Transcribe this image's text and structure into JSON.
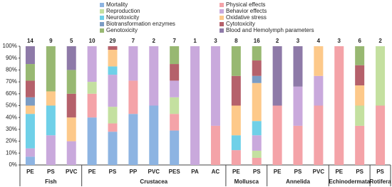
{
  "chart_data": {
    "type": "stacked_bar_100",
    "groups": [
      {
        "name": "Fish",
        "categories": [
          "PE",
          "PS",
          "PVC"
        ]
      },
      {
        "name": "Crustacea",
        "categories": [
          "PE",
          "PS",
          "PP",
          "PVC",
          "PES",
          "PA",
          "AC"
        ]
      },
      {
        "name": "Mollusca",
        "categories": [
          "PE",
          "PS"
        ]
      },
      {
        "name": "Annelida",
        "categories": [
          "PE",
          "PS",
          "PVC"
        ]
      },
      {
        "name": "Echinodermata",
        "categories": [
          "PE",
          "PS"
        ]
      },
      {
        "name": "Rotifera",
        "categories": [
          "PS"
        ]
      }
    ],
    "sample_sizes": [
      14,
      9,
      5,
      10,
      29,
      7,
      2,
      7,
      1,
      3,
      8,
      16,
      2,
      3,
      4,
      3,
      6,
      2
    ],
    "series": [
      {
        "name": "Mortality",
        "color": "#8db4e2",
        "values": [
          7,
          0,
          0,
          40,
          28,
          43,
          50,
          29,
          0,
          0,
          0,
          0,
          0,
          0,
          0,
          0,
          0,
          0
        ]
      },
      {
        "name": "Physical effects",
        "color": "#f4a3a8",
        "values": [
          0,
          0,
          0,
          20,
          7,
          28,
          0,
          14,
          0,
          33,
          12.5,
          6,
          50,
          33,
          50,
          100,
          33,
          50
        ]
      },
      {
        "name": "Reproduction",
        "color": "#c4e0a0",
        "values": [
          0,
          0,
          0,
          10,
          14,
          0,
          0,
          14,
          0,
          0,
          0,
          6,
          0,
          0,
          0,
          0,
          17,
          50
        ]
      },
      {
        "name": "Behavior effects",
        "color": "#c9a9dc",
        "values": [
          7,
          25,
          20,
          30,
          27,
          29,
          50,
          14,
          100,
          67,
          0,
          13,
          0,
          33,
          25,
          0,
          0,
          0
        ]
      },
      {
        "name": "Neurotoxicity",
        "color": "#6fd0e8",
        "values": [
          29,
          25,
          0,
          0,
          7,
          0,
          0,
          0,
          0,
          0,
          12.5,
          12,
          0,
          0,
          0,
          0,
          0,
          0
        ]
      },
      {
        "name": "Oxidative stress",
        "color": "#fdc98a",
        "values": [
          7,
          12,
          20,
          0,
          14,
          0,
          0,
          0,
          0,
          0,
          25,
          32,
          0,
          0,
          25,
          0,
          17,
          0
        ]
      },
      {
        "name": "Biotransformation enzymes",
        "color": "#7b9cc4",
        "values": [
          7,
          0,
          0,
          0,
          0,
          0,
          0,
          0,
          0,
          0,
          0,
          6,
          0,
          0,
          0,
          0,
          0,
          0
        ]
      },
      {
        "name": "Cytotoxicity",
        "color": "#b5616b",
        "values": [
          14,
          0,
          20,
          0,
          3,
          0,
          0,
          14,
          0,
          0,
          25,
          13,
          0,
          0,
          0,
          0,
          17,
          0
        ]
      },
      {
        "name": "Genotoxicity",
        "color": "#98b872",
        "values": [
          14,
          38,
          20,
          0,
          0,
          0,
          0,
          15,
          0,
          0,
          25,
          12,
          0,
          0,
          0,
          0,
          16,
          0
        ]
      },
      {
        "name": "Blood and Hemolymph parameters",
        "color": "#8e7aa8",
        "values": [
          15,
          0,
          20,
          0,
          0,
          0,
          0,
          0,
          0,
          0,
          0,
          0,
          50,
          34,
          0,
          0,
          0,
          0
        ]
      }
    ],
    "ylim": [
      0,
      100
    ],
    "yticks": [
      {
        "value": 0,
        "label": "0%"
      },
      {
        "value": 10,
        "label": "10%"
      },
      {
        "value": 20,
        "label": "20%"
      },
      {
        "value": 30,
        "label": "30%"
      },
      {
        "value": 40,
        "label": "40%"
      },
      {
        "value": 50,
        "label": "50%"
      },
      {
        "value": 60,
        "label": "60%"
      },
      {
        "value": 70,
        "label": "70%"
      },
      {
        "value": 80,
        "label": "80%"
      },
      {
        "value": 90,
        "label": "90%"
      },
      {
        "value": 100,
        "label": "100%"
      }
    ]
  }
}
